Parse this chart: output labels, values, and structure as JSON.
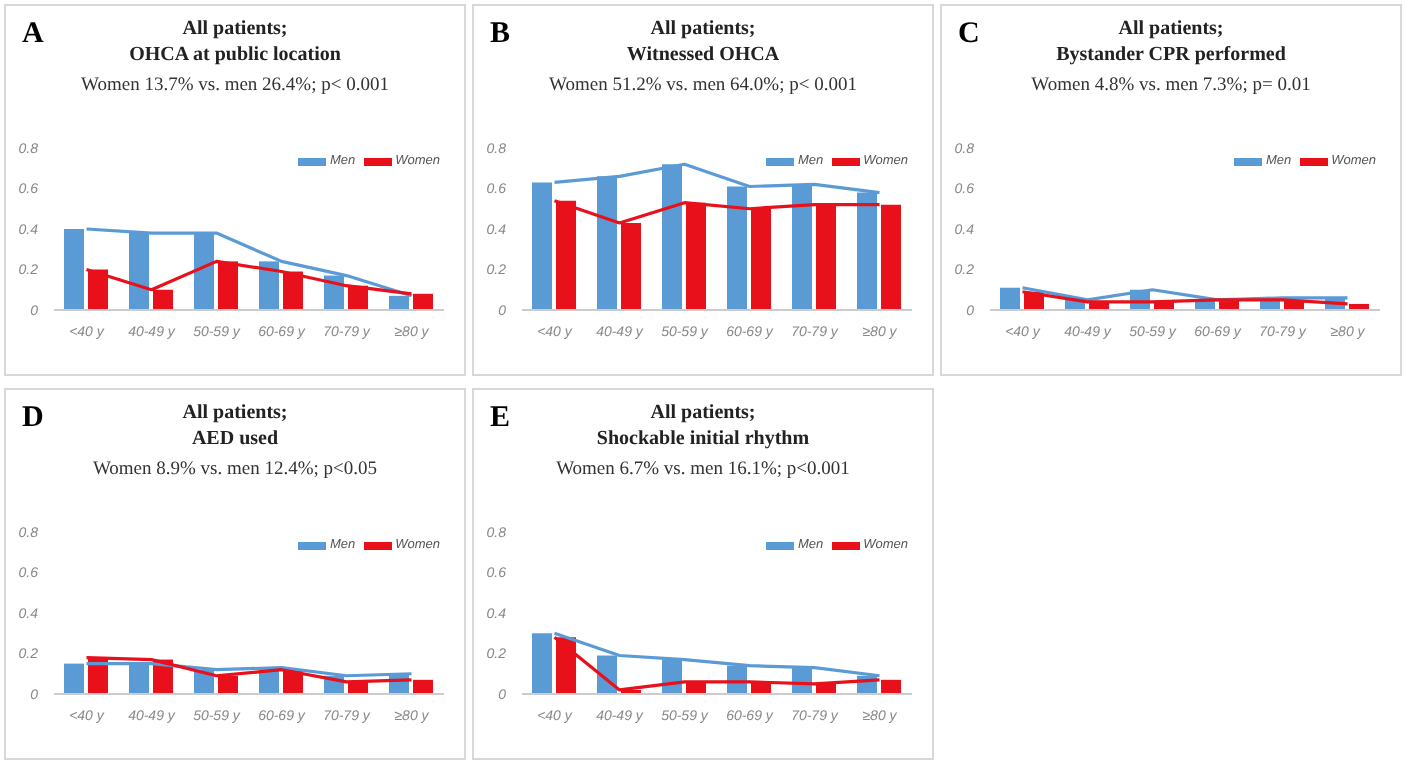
{
  "chart_data": [
    {
      "type": "bar",
      "title": "All patients;\nOHCA at public location",
      "subtitle": "Women 13.7% vs. men 26.4%; p< 0.001",
      "annotations": [
        "A"
      ],
      "categories": [
        "<40 y",
        "40-49 y",
        "50-59 y",
        "60-69 y",
        "70-79 y",
        "≥80 y"
      ],
      "ylim": [
        0,
        0.8
      ],
      "yticks": [
        0,
        0.2,
        0.4,
        0.6,
        0.8
      ],
      "legend": "top right",
      "marker": "none",
      "grid": false,
      "series": [
        {
          "name": "Men",
          "color": "#5b9bd5",
          "values": [
            0.4,
            0.38,
            0.38,
            0.24,
            0.17,
            0.07
          ]
        },
        {
          "name": "Women",
          "color": "#e8101a",
          "values": [
            0.2,
            0.1,
            0.24,
            0.19,
            0.12,
            0.08
          ]
        },
        {
          "type": "line",
          "color": "#5b9bd5",
          "values": [
            0.4,
            0.38,
            0.38,
            0.24,
            0.17,
            0.07
          ]
        },
        {
          "type": "line",
          "color": "#e8101a",
          "values": [
            0.2,
            0.1,
            0.24,
            0.19,
            0.12,
            0.08
          ]
        }
      ]
    },
    {
      "type": "bar",
      "title": "All patients;\nWitnessed OHCA",
      "subtitle": "Women 51.2% vs. men 64.0%; p< 0.001",
      "annotations": [
        "B"
      ],
      "categories": [
        "<40 y",
        "40-49 y",
        "50-59 y",
        "60-69 y",
        "70-79 y",
        "≥80 y"
      ],
      "ylim": [
        0,
        0.8
      ],
      "yticks": [
        0,
        0.2,
        0.4,
        0.6,
        0.8
      ],
      "legend": "top right",
      "marker": "none",
      "grid": false,
      "series": [
        {
          "name": "Men",
          "color": "#5b9bd5",
          "values": [
            0.63,
            0.66,
            0.72,
            0.61,
            0.62,
            0.58
          ]
        },
        {
          "name": "Women",
          "color": "#e8101a",
          "values": [
            0.54,
            0.43,
            0.53,
            0.5,
            0.52,
            0.52
          ]
        },
        {
          "type": "line",
          "color": "#5b9bd5",
          "values": [
            0.63,
            0.66,
            0.72,
            0.61,
            0.62,
            0.58
          ]
        },
        {
          "type": "line",
          "color": "#e8101a",
          "values": [
            0.54,
            0.43,
            0.53,
            0.5,
            0.52,
            0.52
          ]
        }
      ]
    },
    {
      "type": "bar",
      "title": "All patients;\nBystander CPR performed",
      "subtitle": "Women 4.8% vs. men 7.3%; p= 0.01",
      "annotations": [
        "C"
      ],
      "categories": [
        "<40 y",
        "40-49 y",
        "50-59 y",
        "60-69 y",
        "70-79 y",
        "≥80 y"
      ],
      "ylim": [
        0,
        0.8
      ],
      "yticks": [
        0,
        0.2,
        0.4,
        0.6,
        0.8
      ],
      "legend": "top right",
      "marker": "none",
      "grid": false,
      "series": [
        {
          "name": "Men",
          "color": "#5b9bd5",
          "values": [
            0.11,
            0.05,
            0.1,
            0.05,
            0.06,
            0.06
          ]
        },
        {
          "name": "Women",
          "color": "#e8101a",
          "values": [
            0.09,
            0.04,
            0.04,
            0.05,
            0.05,
            0.03
          ]
        },
        {
          "type": "line",
          "color": "#5b9bd5",
          "values": [
            0.11,
            0.05,
            0.1,
            0.05,
            0.06,
            0.06
          ]
        },
        {
          "type": "line",
          "color": "#e8101a",
          "values": [
            0.09,
            0.04,
            0.04,
            0.05,
            0.05,
            0.03
          ]
        }
      ]
    },
    {
      "type": "bar",
      "title": "All patients;\nAED used",
      "subtitle": "Women 8.9% vs. men 12.4%; p<0.05",
      "annotations": [
        "D"
      ],
      "categories": [
        "<40 y",
        "40-49 y",
        "50-59 y",
        "60-69 y",
        "70-79 y",
        "≥80 y"
      ],
      "ylim": [
        0,
        0.8
      ],
      "yticks": [
        0,
        0.2,
        0.4,
        0.6,
        0.8
      ],
      "legend": "top right",
      "marker": "none",
      "grid": false,
      "series": [
        {
          "name": "Men",
          "color": "#5b9bd5",
          "values": [
            0.15,
            0.15,
            0.12,
            0.13,
            0.09,
            0.1
          ]
        },
        {
          "name": "Women",
          "color": "#e8101a",
          "values": [
            0.18,
            0.17,
            0.09,
            0.12,
            0.06,
            0.07
          ]
        },
        {
          "type": "line",
          "color": "#5b9bd5",
          "values": [
            0.15,
            0.15,
            0.12,
            0.13,
            0.09,
            0.1
          ]
        },
        {
          "type": "line",
          "color": "#e8101a",
          "values": [
            0.18,
            0.17,
            0.09,
            0.12,
            0.06,
            0.07
          ]
        }
      ]
    },
    {
      "type": "bar",
      "title": "All patients;\nShockable initial rhythm",
      "subtitle": "Women 6.7% vs. men 16.1%; p<0.001",
      "annotations": [
        "E"
      ],
      "categories": [
        "<40 y",
        "40-49 y",
        "50-59 y",
        "60-69 y",
        "70-79 y",
        "≥80 y"
      ],
      "ylim": [
        0,
        0.8
      ],
      "yticks": [
        0,
        0.2,
        0.4,
        0.6,
        0.8
      ],
      "legend": "top right",
      "marker": "none",
      "grid": false,
      "series": [
        {
          "name": "Men",
          "color": "#5b9bd5",
          "values": [
            0.3,
            0.19,
            0.17,
            0.14,
            0.13,
            0.09
          ]
        },
        {
          "name": "Women",
          "color": "#e8101a",
          "values": [
            0.28,
            0.02,
            0.06,
            0.06,
            0.05,
            0.07
          ]
        },
        {
          "type": "line",
          "color": "#5b9bd5",
          "values": [
            0.3,
            0.19,
            0.17,
            0.14,
            0.13,
            0.09
          ]
        },
        {
          "type": "line",
          "color": "#e8101a",
          "values": [
            0.28,
            0.02,
            0.06,
            0.06,
            0.05,
            0.07
          ]
        }
      ]
    }
  ]
}
